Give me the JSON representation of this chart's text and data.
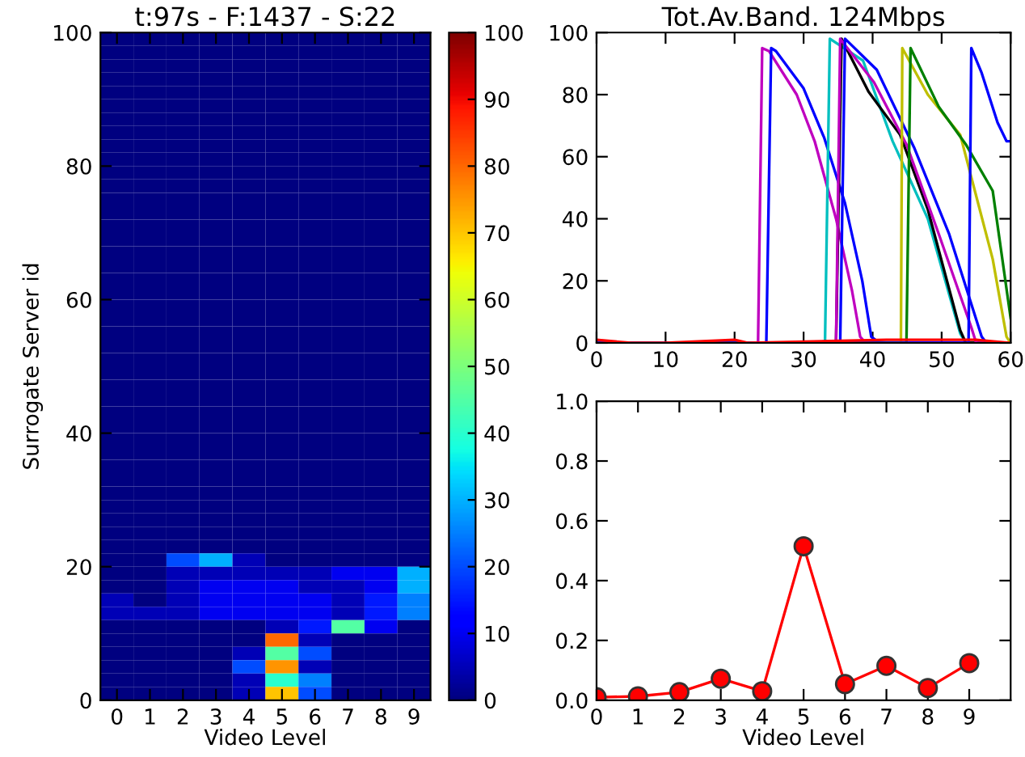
{
  "chart_data": [
    {
      "type": "heatmap",
      "title": "t:97s - F:1437 - S:22",
      "xlabel": "Video Level",
      "ylabel": "Surrogate Server id",
      "categories": [
        "0",
        "1",
        "2",
        "3",
        "4",
        "5",
        "6",
        "7",
        "8",
        "9"
      ],
      "ylim": [
        0,
        100
      ],
      "yticks": [
        0,
        20,
        40,
        60,
        80,
        100
      ],
      "clim": [
        0,
        100
      ],
      "cticks": [
        0,
        10,
        20,
        30,
        40,
        50,
        60,
        70,
        80,
        90,
        100
      ],
      "cells": [
        [
          0,
          0,
          0,
          0,
          0,
          0,
          0,
          0,
          0,
          0
        ],
        [
          0,
          0,
          0,
          0,
          0,
          0,
          0,
          0,
          0,
          0
        ],
        [
          0,
          0,
          0,
          0,
          0,
          0,
          0,
          0,
          0,
          0
        ],
        [
          0,
          0,
          0,
          0,
          0,
          0,
          0,
          0,
          0,
          0
        ],
        [
          0,
          0,
          0,
          0,
          0,
          0,
          0,
          0,
          0,
          0
        ],
        [
          0,
          0,
          0,
          0,
          0,
          0,
          0,
          0,
          0,
          0
        ],
        [
          0,
          0,
          0,
          0,
          0,
          0,
          0,
          0,
          0,
          0
        ],
        [
          0,
          0,
          0,
          0,
          0,
          0,
          0,
          0,
          0,
          0
        ],
        [
          0,
          0,
          0,
          0,
          0,
          0,
          0,
          0,
          0,
          0
        ],
        [
          0,
          0,
          0,
          0,
          0,
          0,
          0,
          0,
          0,
          0
        ],
        [
          0,
          0,
          0,
          0,
          0,
          0,
          0,
          0,
          0,
          0
        ],
        [
          0,
          0,
          0,
          0,
          0,
          0,
          0,
          0,
          0,
          0
        ],
        [
          0,
          0,
          0,
          0,
          0,
          0,
          0,
          0,
          0,
          0
        ],
        [
          0,
          0,
          0,
          0,
          0,
          0,
          0,
          0,
          0,
          0
        ],
        [
          0,
          0,
          0,
          0,
          0,
          0,
          0,
          0,
          0,
          0
        ],
        [
          0,
          0,
          0,
          0,
          0,
          0,
          0,
          0,
          0,
          0
        ],
        [
          0,
          0,
          0,
          0,
          0,
          0,
          0,
          0,
          0,
          0
        ],
        [
          0,
          0,
          0,
          0,
          0,
          0,
          0,
          0,
          0,
          0
        ],
        [
          0,
          0,
          0,
          0,
          0,
          0,
          0,
          0,
          0,
          0
        ],
        [
          0,
          0,
          0,
          0,
          0,
          0,
          0,
          0,
          0,
          0
        ],
        [
          0,
          0,
          0,
          0,
          0,
          0,
          0,
          0,
          0,
          0
        ],
        [
          0,
          0,
          0,
          0,
          0,
          0,
          0,
          0,
          0,
          0
        ],
        [
          0,
          0,
          0,
          0,
          0,
          0,
          0,
          0,
          0,
          0
        ],
        [
          0,
          0,
          0,
          0,
          0,
          0,
          0,
          0,
          0,
          0
        ],
        [
          0,
          0,
          0,
          0,
          0,
          0,
          0,
          0,
          0,
          0
        ],
        [
          0,
          0,
          0,
          0,
          0,
          0,
          0,
          0,
          0,
          0
        ],
        [
          0,
          0,
          0,
          0,
          0,
          0,
          0,
          0,
          0,
          0
        ],
        [
          0,
          0,
          0,
          0,
          0,
          0,
          0,
          0,
          0,
          0
        ],
        [
          0,
          0,
          0,
          0,
          0,
          0,
          0,
          0,
          0,
          0
        ],
        [
          0,
          0,
          0,
          0,
          0,
          0,
          0,
          0,
          0,
          0
        ],
        [
          0,
          0,
          0,
          0,
          0,
          0,
          0,
          0,
          0,
          0
        ],
        [
          0,
          0,
          0,
          0,
          0,
          0,
          0,
          0,
          0,
          0
        ],
        [
          0,
          0,
          0,
          0,
          0,
          0,
          0,
          0,
          0,
          0
        ],
        [
          0,
          0,
          0,
          0,
          0,
          0,
          0,
          0,
          0,
          0
        ],
        [
          0,
          0,
          0,
          0,
          0,
          0,
          0,
          0,
          0,
          0
        ],
        [
          0,
          0,
          0,
          0,
          0,
          0,
          0,
          0,
          0,
          0
        ],
        [
          0,
          0,
          0,
          0,
          0,
          0,
          0,
          0,
          0,
          0
        ],
        [
          0,
          0,
          0,
          0,
          0,
          0,
          0,
          0,
          0,
          0
        ],
        [
          0,
          0,
          0,
          0,
          0,
          0,
          0,
          0,
          0,
          0
        ],
        [
          0,
          0,
          20,
          30,
          5,
          0,
          0,
          0,
          0,
          0
        ],
        [
          0,
          0,
          5,
          5,
          5,
          5,
          5,
          10,
          10,
          30
        ],
        [
          0,
          0,
          5,
          10,
          10,
          10,
          5,
          5,
          10,
          30
        ],
        [
          5,
          0,
          5,
          10,
          10,
          10,
          10,
          5,
          15,
          25
        ],
        [
          5,
          5,
          5,
          10,
          10,
          10,
          10,
          5,
          15,
          25
        ],
        [
          0,
          0,
          0,
          0,
          0,
          5,
          15,
          45,
          10,
          0
        ],
        [
          0,
          0,
          0,
          0,
          0,
          80,
          5,
          0,
          0,
          0
        ],
        [
          0,
          0,
          0,
          0,
          5,
          45,
          20,
          0,
          0,
          0
        ],
        [
          0,
          0,
          0,
          0,
          20,
          75,
          5,
          0,
          0,
          0
        ],
        [
          0,
          0,
          0,
          0,
          5,
          40,
          25,
          0,
          0,
          0
        ],
        [
          0,
          0,
          0,
          0,
          5,
          70,
          20,
          0,
          0,
          0
        ]
      ]
    },
    {
      "type": "line",
      "title": "Tot.Av.Band. 124Mbps",
      "xlim": [
        0,
        60
      ],
      "xticks": [
        0,
        10,
        20,
        30,
        40,
        50,
        60
      ],
      "ylim": [
        0,
        100
      ],
      "yticks": [
        0,
        20,
        40,
        60,
        80,
        100
      ],
      "grid": false,
      "marker": "none",
      "series": [
        {
          "color": "#bf00bf",
          "x": [
            0,
            23.4,
            24,
            25,
            29,
            31.6,
            34.7,
            37,
            38.2,
            39,
            60
          ],
          "values": [
            0,
            0,
            95,
            94,
            80,
            65,
            40,
            17,
            2,
            0,
            0
          ]
        },
        {
          "color": "#0000ff",
          "x": [
            0,
            24.6,
            25.3,
            26,
            30,
            33,
            36,
            38.5,
            39.8,
            41,
            60
          ],
          "values": [
            0,
            0,
            95,
            94,
            82,
            66,
            45,
            20,
            2,
            0,
            0
          ]
        },
        {
          "color": "#00bfbf",
          "x": [
            0,
            33.1,
            33.8,
            38.6,
            42.9,
            48,
            52.7,
            53.5,
            60
          ],
          "values": [
            0,
            0,
            98,
            91,
            65,
            40,
            3,
            0,
            0
          ]
        },
        {
          "color": "#000000",
          "x": [
            0,
            34.7,
            35.5,
            39.4,
            44,
            48,
            52.7,
            53.5,
            60
          ],
          "values": [
            0,
            0,
            98,
            81,
            67,
            43,
            4,
            0,
            0
          ]
        },
        {
          "color": "#bf00bf",
          "x": [
            0,
            34.7,
            35.3,
            40.2,
            44.9,
            49.6,
            54.3,
            55,
            60
          ],
          "values": [
            0,
            0,
            98,
            84,
            64,
            35,
            5,
            0,
            0
          ]
        },
        {
          "color": "#0000ff",
          "x": [
            0,
            35.3,
            36,
            40.6,
            46,
            51.1,
            55.8,
            56.5,
            60
          ],
          "values": [
            0,
            0,
            98,
            88,
            63,
            35,
            2,
            0,
            0
          ]
        },
        {
          "color": "#bfbf00",
          "x": [
            0,
            44.1,
            44.3,
            48,
            52.7,
            57.4,
            59.4,
            60
          ],
          "values": [
            0,
            0,
            95,
            80,
            67,
            27,
            2,
            0
          ]
        },
        {
          "color": "#008000",
          "x": [
            0,
            44.9,
            45.5,
            49.6,
            53.5,
            57.4,
            60
          ],
          "values": [
            0,
            0,
            95,
            76,
            64,
            49,
            8
          ]
        },
        {
          "color": "#0000ff",
          "x": [
            0,
            53.9,
            54.3,
            55.8,
            58.1,
            59.4,
            60
          ],
          "values": [
            0,
            0,
            95,
            87,
            71,
            65,
            65
          ]
        },
        {
          "color": "#ff0000",
          "x": [
            0,
            5,
            10,
            20,
            22,
            42,
            55,
            60
          ],
          "values": [
            1,
            0,
            0,
            1,
            0,
            1,
            1,
            0
          ]
        }
      ]
    },
    {
      "type": "line",
      "xlabel": "Video Level",
      "xlim": [
        0,
        10
      ],
      "xticks": [
        0,
        1,
        2,
        3,
        4,
        5,
        6,
        7,
        8,
        9
      ],
      "ylim": [
        0,
        1
      ],
      "yticks": [
        {
          "value": 0,
          "label": "0.0"
        },
        {
          "value": 0.2,
          "label": "0.2"
        },
        {
          "value": 0.4,
          "label": "0.4"
        },
        {
          "value": 0.6,
          "label": "0.6"
        },
        {
          "value": 0.8,
          "label": "0.8"
        },
        {
          "value": 1,
          "label": "1.0"
        }
      ],
      "grid": false,
      "marker": "circle",
      "series": [
        {
          "color": "#ff0000",
          "x": [
            0,
            1,
            2,
            3,
            4,
            5,
            6,
            7,
            8,
            9
          ],
          "values": [
            0.01,
            0.013,
            0.027,
            0.072,
            0.03,
            0.515,
            0.054,
            0.115,
            0.041,
            0.124
          ]
        }
      ]
    }
  ]
}
